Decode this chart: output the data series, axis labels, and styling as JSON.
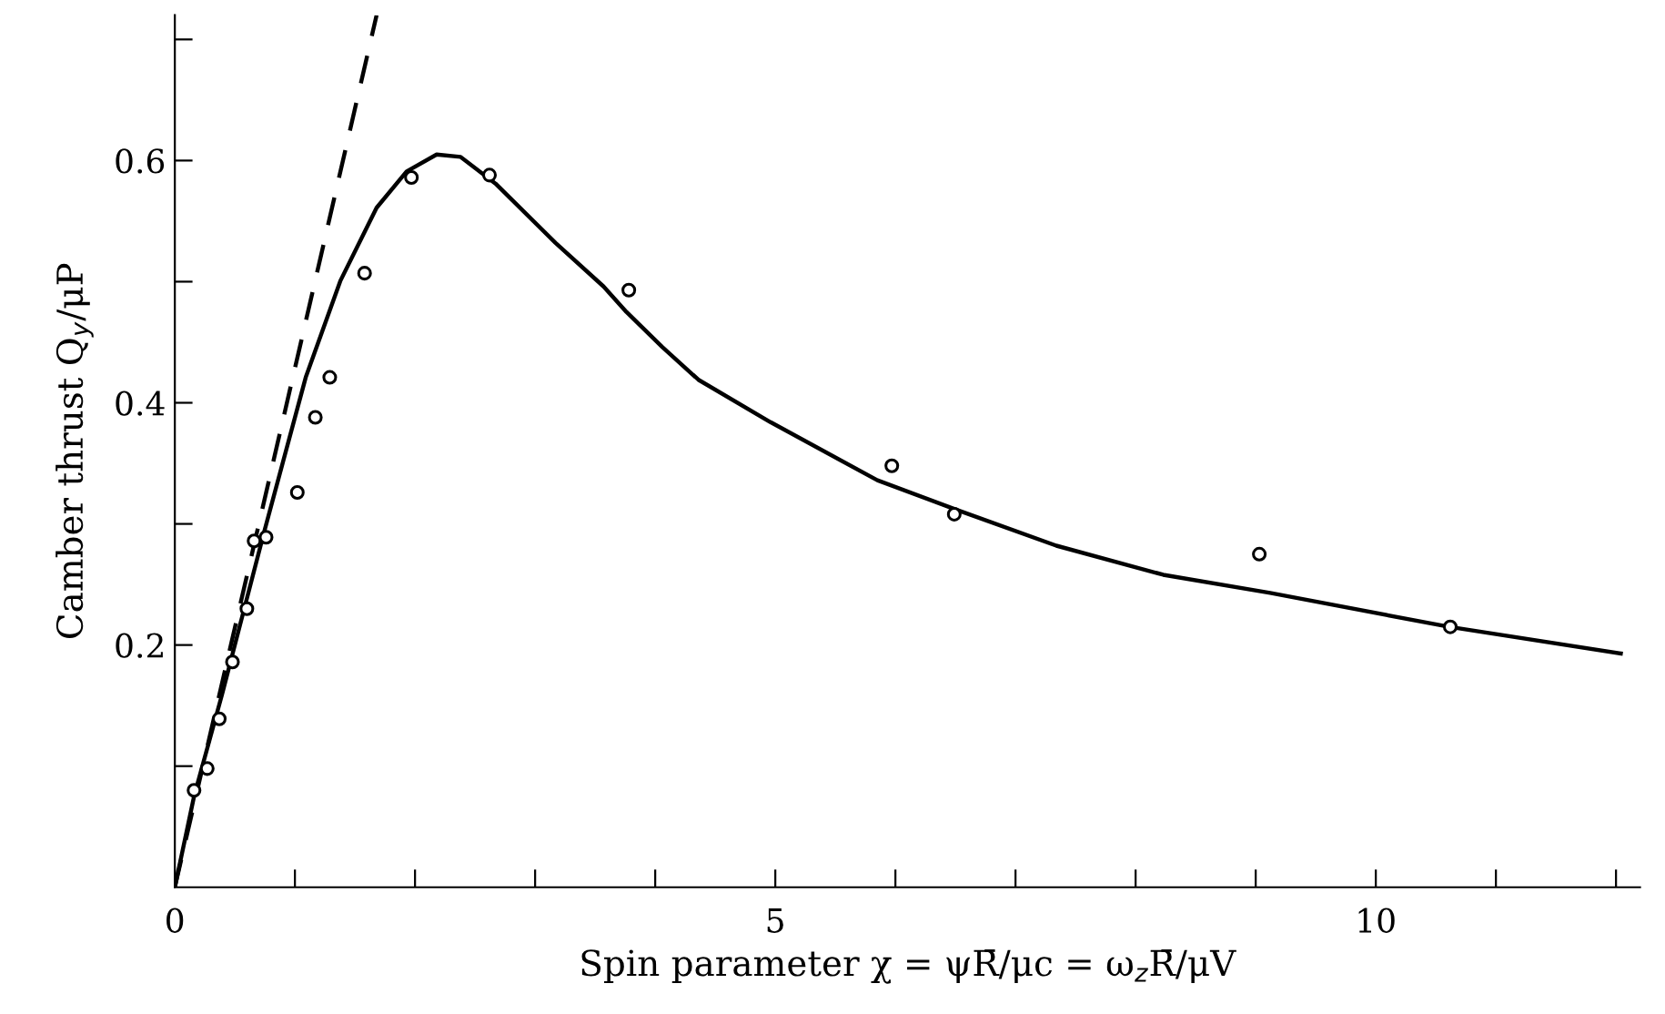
{
  "chart_data": {
    "type": "scatter",
    "xlabel": "Spin parameter χ = ψR̄/μc = ω$_{z}$R̄/μV",
    "ylabel": "Camber thrust Q$_{y}$/μP",
    "xlim": [
      0,
      12.2
    ],
    "ylim": [
      0,
      0.72
    ],
    "xticks": [
      0,
      {
        "value": 1,
        "label": null
      },
      {
        "value": 2,
        "label": null
      },
      {
        "value": 3,
        "label": null
      },
      {
        "value": 4,
        "label": null
      },
      5,
      {
        "value": 6,
        "label": null
      },
      {
        "value": 7,
        "label": null
      },
      {
        "value": 8,
        "label": null
      },
      {
        "value": 9,
        "label": null
      },
      10,
      {
        "value": 11,
        "label": null
      },
      {
        "value": 12,
        "label": null
      }
    ],
    "yticks": [
      {
        "value": 0.1,
        "label": null
      },
      0.2,
      {
        "value": 0.3,
        "label": null
      },
      0.4,
      {
        "value": 0.5,
        "label": null
      },
      0.6,
      {
        "value": 0.7,
        "label": null
      }
    ],
    "grid": false,
    "legend": false,
    "series": [
      {
        "color": "#000000",
        "marker": "circle",
        "x": [
          0.16,
          0.27,
          0.37,
          0.48,
          0.6,
          0.66,
          0.76,
          1.02,
          1.17,
          1.29,
          1.58,
          1.97,
          2.62,
          3.78,
          5.97,
          6.49,
          9.03,
          10.62
        ],
        "values": [
          0.08,
          0.098,
          0.139,
          0.186,
          0.23,
          0.286,
          0.289,
          0.326,
          0.388,
          0.421,
          0.507,
          0.586,
          0.588,
          0.493,
          0.348,
          0.308,
          0.275,
          0.215
        ]
      },
      {
        "type": "line",
        "color": "#000000",
        "line_style": "solid",
        "x": [
          0,
          0.16,
          0.39,
          0.74,
          1.09,
          1.38,
          1.68,
          1.93,
          2.18,
          2.38,
          2.67,
          3.17,
          3.57,
          3.76,
          4.06,
          4.36,
          4.96,
          5.85,
          6.5,
          7.34,
          8.23,
          9.12,
          10.61,
          12.04
        ],
        "values": [
          0,
          0.075,
          0.158,
          0.292,
          0.421,
          0.501,
          0.561,
          0.591,
          0.605,
          0.603,
          0.581,
          0.532,
          0.496,
          0.475,
          0.446,
          0.419,
          0.384,
          0.336,
          0.312,
          0.282,
          0.258,
          0.243,
          0.215,
          0.193
        ]
      },
      {
        "type": "line",
        "color": "#000000",
        "line_style": "dashed",
        "x": [
          0,
          1.68
        ],
        "values": [
          0,
          0.72
        ]
      }
    ]
  }
}
